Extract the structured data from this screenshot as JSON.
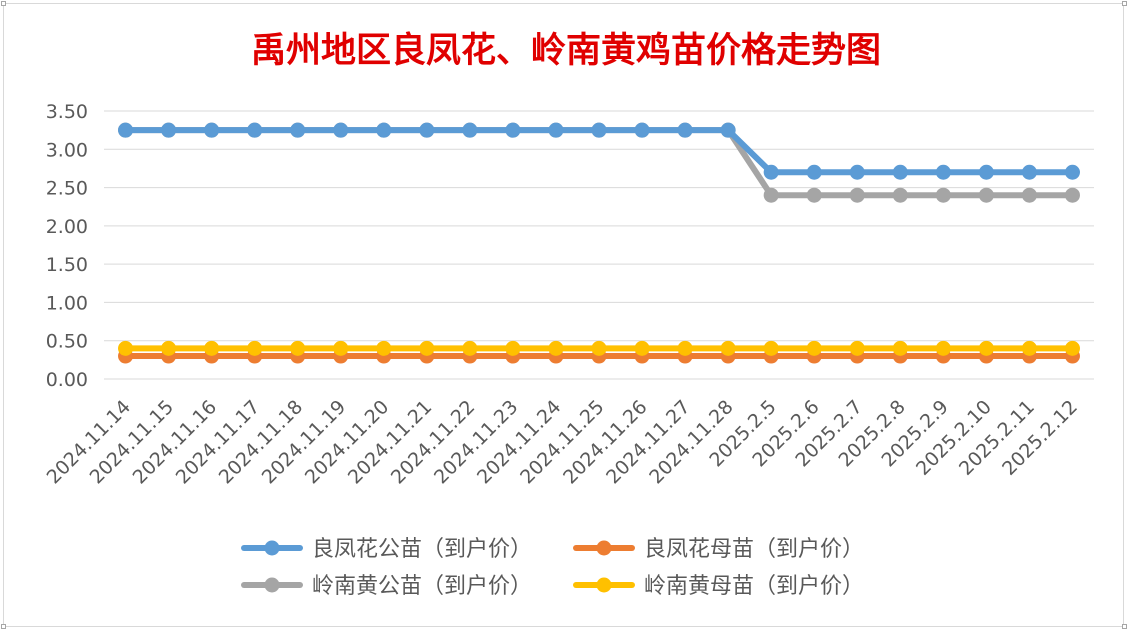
{
  "chart_data": {
    "type": "line",
    "title": "禹州地区良凤花、岭南黄鸡苗价格走势图",
    "categories": [
      "2024.11.14",
      "2024.11.15",
      "2024.11.16",
      "2024.11.17",
      "2024.11.18",
      "2024.11.19",
      "2024.11.20",
      "2024.11.21",
      "2024.11.22",
      "2024.11.23",
      "2024.11.24",
      "2024.11.25",
      "2024.11.26",
      "2024.11.27",
      "2024.11.28",
      "2025.2.5",
      "2025.2.6",
      "2025.2.7",
      "2025.2.8",
      "2025.2.9",
      "2025.2.10",
      "2025.2.11",
      "2025.2.12"
    ],
    "ylim": [
      0,
      3.5
    ],
    "yticks": [
      "0.00",
      "0.50",
      "1.00",
      "1.50",
      "2.00",
      "2.50",
      "3.00",
      "3.50"
    ],
    "grid": true,
    "legend_position": "bottom",
    "series": [
      {
        "name": "良凤花公苗（到户价）",
        "color": "#5b9bd5",
        "values": [
          3.25,
          3.25,
          3.25,
          3.25,
          3.25,
          3.25,
          3.25,
          3.25,
          3.25,
          3.25,
          3.25,
          3.25,
          3.25,
          3.25,
          3.25,
          2.7,
          2.7,
          2.7,
          2.7,
          2.7,
          2.7,
          2.7,
          2.7
        ]
      },
      {
        "name": "良凤花母苗（到户价）",
        "color": "#ed7d31",
        "values": [
          0.3,
          0.3,
          0.3,
          0.3,
          0.3,
          0.3,
          0.3,
          0.3,
          0.3,
          0.3,
          0.3,
          0.3,
          0.3,
          0.3,
          0.3,
          0.3,
          0.3,
          0.3,
          0.3,
          0.3,
          0.3,
          0.3,
          0.3
        ]
      },
      {
        "name": "岭南黄公苗（到户价）",
        "color": "#a5a5a5",
        "values": [
          3.25,
          3.25,
          3.25,
          3.25,
          3.25,
          3.25,
          3.25,
          3.25,
          3.25,
          3.25,
          3.25,
          3.25,
          3.25,
          3.25,
          3.25,
          2.4,
          2.4,
          2.4,
          2.4,
          2.4,
          2.4,
          2.4,
          2.4
        ]
      },
      {
        "name": "岭南黄母苗（到户价）",
        "color": "#ffc000",
        "values": [
          0.4,
          0.4,
          0.4,
          0.4,
          0.4,
          0.4,
          0.4,
          0.4,
          0.4,
          0.4,
          0.4,
          0.4,
          0.4,
          0.4,
          0.4,
          0.4,
          0.4,
          0.4,
          0.4,
          0.4,
          0.4,
          0.4,
          0.4
        ]
      }
    ],
    "draw_order": [
      1,
      3,
      2,
      0
    ],
    "title_color": "#e00000"
  }
}
